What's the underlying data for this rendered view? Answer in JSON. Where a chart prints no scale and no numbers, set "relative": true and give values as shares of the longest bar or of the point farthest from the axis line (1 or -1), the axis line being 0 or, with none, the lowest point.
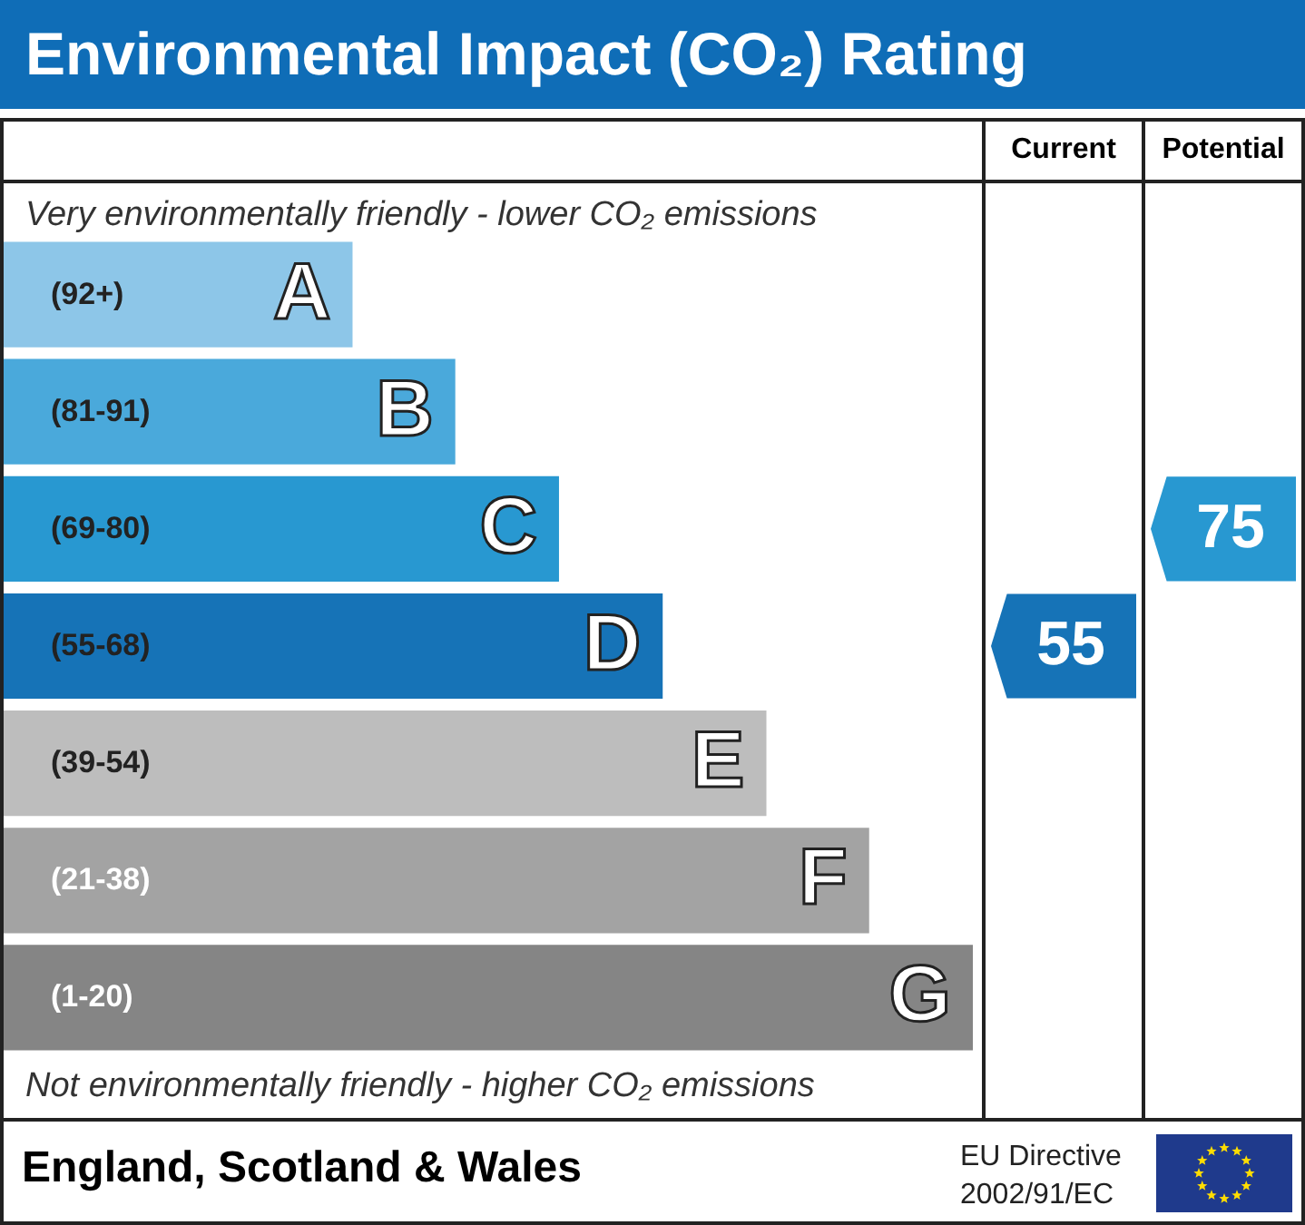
{
  "chart_data": {
    "type": "bar",
    "orientation": "horizontal",
    "relative": true,
    "title": "Environmental Impact (CO₂) Rating",
    "categories": [
      "A",
      "B",
      "C",
      "D",
      "E",
      "F",
      "G"
    ],
    "values": [
      0.36,
      0.466,
      0.573,
      0.68,
      0.787,
      0.893,
      1
    ],
    "colors": [
      "#8dc6e8",
      "#4aa9db",
      "#2898d1",
      "#1673b7",
      "#bdbdbd",
      "#a3a3a3",
      "#858585"
    ],
    "annotations": [
      "Very environmentally friendly - lower CO₂ emissions",
      "Not environmentally friendly - higher CO₂ emissions",
      "Current",
      "Potential",
      "55",
      "75",
      "(92+)",
      "(81-91)",
      "(69-80)",
      "(55-68)",
      "(39-54)",
      "(21-38)",
      "(1-20)",
      "England, Scotland & Wales",
      "EU Directive",
      "2002/91/EC"
    ]
  }
}
